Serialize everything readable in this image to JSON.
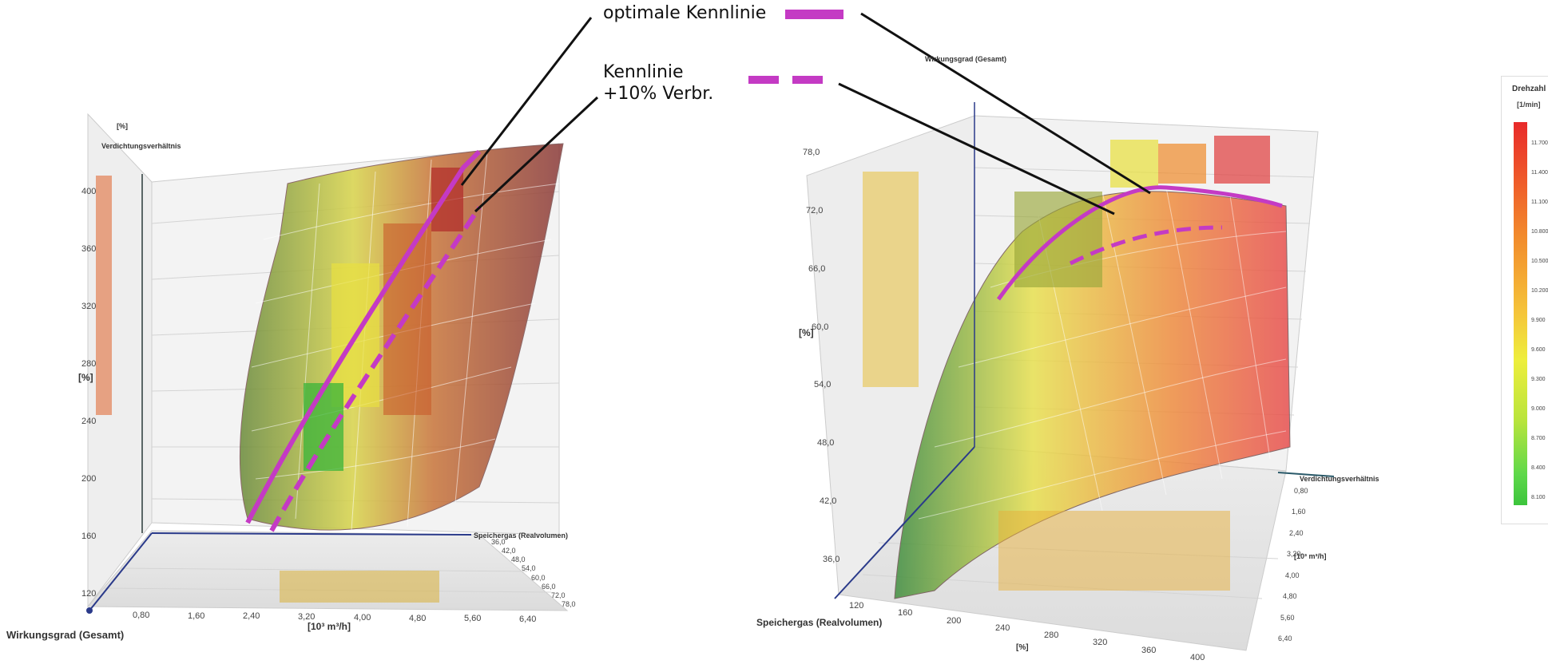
{
  "annotations": {
    "optimal": "optimale Kennlinie",
    "plus10_line1": "Kennlinie",
    "plus10_line2": "+10% Verbr."
  },
  "legend": {
    "title": "Drehzahl",
    "unit": "[1/min]",
    "ticks": [
      "11.700",
      "11.400",
      "11.100",
      "10.800",
      "10.500",
      "10.200",
      "9.900",
      "9.600",
      "9.300",
      "9.000",
      "8.700",
      "8.400",
      "8.100"
    ]
  },
  "colors": {
    "optimal_line": "#c43ac4",
    "plus10_line": "#c43ac4",
    "axis": "#2a3a8a",
    "legend_high": "#e82a2a",
    "legend_low": "#3cc43c"
  },
  "chart_data": [
    {
      "type": "surface-3d",
      "axes": {
        "x": {
          "label": "Wirkungsgrad (Gesamt)",
          "unit": "[%]",
          "ticks": [
            "120",
            "160",
            "200",
            "240",
            "280",
            "320",
            "360",
            "400"
          ]
        },
        "y": {
          "label": "Speichergas (Realvolumen)",
          "unit": "[10³ m³/h]",
          "ticks": [
            "0,80",
            "1,60",
            "2,40",
            "3,20",
            "4,00",
            "4,80",
            "5,60",
            "6,40"
          ]
        },
        "z": {
          "label": "Verdichtungsverhältnis",
          "unit": "[%]",
          "ticks": [
            "36,0",
            "42,0",
            "48,0",
            "54,0",
            "60,0",
            "66,0",
            "72,0",
            "78,0"
          ]
        }
      },
      "series": [
        {
          "name": "optimale Kennlinie",
          "style": "solid"
        },
        {
          "name": "Kennlinie +10% Verbr.",
          "style": "dashed"
        }
      ]
    },
    {
      "type": "surface-3d",
      "axes": {
        "x": {
          "label": "Speichergas (Realvolumen)",
          "unit": "[%]",
          "ticks": [
            "120",
            "160",
            "200",
            "240",
            "280",
            "320",
            "360",
            "400"
          ]
        },
        "y": {
          "label": "Verdichtungsverhältnis",
          "unit": "[10³ m³/h]",
          "ticks": [
            "0,80",
            "1,60",
            "2,40",
            "3,20",
            "4,00",
            "4,80",
            "5,60",
            "6,40"
          ]
        },
        "z": {
          "label": "Wirkungsgrad (Gesamt)",
          "unit": "[%]",
          "ticks": [
            "36,0",
            "42,0",
            "48,0",
            "54,0",
            "60,0",
            "66,0",
            "72,0",
            "78,0"
          ]
        }
      },
      "series": [
        {
          "name": "optimale Kennlinie",
          "style": "solid"
        },
        {
          "name": "Kennlinie +10% Verbr.",
          "style": "dashed"
        }
      ]
    }
  ]
}
